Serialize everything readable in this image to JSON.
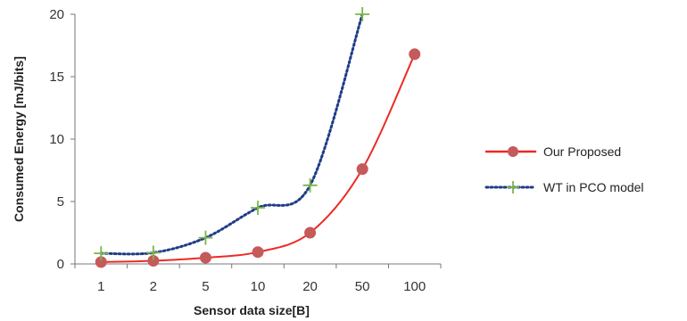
{
  "chart_data": {
    "type": "line",
    "categories": [
      "1",
      "2",
      "5",
      "10",
      "20",
      "50",
      "100"
    ],
    "xlabel": "Sensor data size[B]",
    "ylabel": "Consumed Energy [mJ/bits]",
    "ylim": [
      0,
      20
    ],
    "yticks": [
      "0",
      "5",
      "10",
      "15",
      "20"
    ],
    "grid": false,
    "legend_position": "right",
    "series": [
      {
        "name": "Our Proposed",
        "values": [
          0.15,
          0.25,
          0.5,
          0.95,
          2.5,
          7.6,
          16.8
        ],
        "color": "#ee2a24",
        "marker_color": "#c55a5a",
        "line_style": "solid",
        "marker": "circle"
      },
      {
        "name": "WT in PCO model",
        "values": [
          0.85,
          0.9,
          2.1,
          4.5,
          6.3,
          20,
          null
        ],
        "color": "#1f3c88",
        "marker_color": "#7ab648",
        "line_style": "dotted",
        "marker": "plus"
      }
    ]
  }
}
